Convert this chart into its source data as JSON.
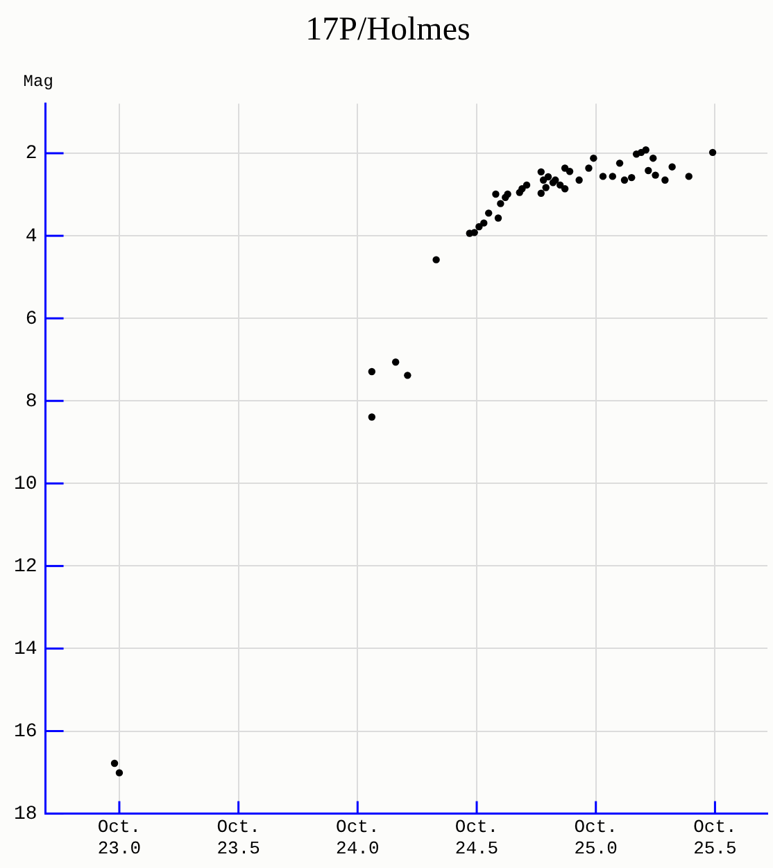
{
  "chart_data": {
    "type": "scatter",
    "title": "17P/Holmes",
    "ylabel": "Mag",
    "x": [
      "--10-22T23:31",
      "--10-23T00:00",
      "--10-24T01:26",
      "--10-24T01:26",
      "--10-24T03:50",
      "--10-24T05:02",
      "--10-24T07:55",
      "--10-24T11:17",
      "--10-24T11:46",
      "--10-24T12:14",
      "--10-24T12:43",
      "--10-24T13:12",
      "--10-24T14:10",
      "--10-24T13:55",
      "--10-24T14:24",
      "--10-24T14:53",
      "--10-24T15:07",
      "--10-24T16:19",
      "--10-24T16:34",
      "--10-24T17:02",
      "--10-24T18:29",
      "--10-24T18:29",
      "--10-24T18:43",
      "--10-24T18:58",
      "--10-24T19:12",
      "--10-24T19:41",
      "--10-24T19:55",
      "--10-24T20:24",
      "--10-24T20:53",
      "--10-24T20:53",
      "--10-24T21:22",
      "--10-24T22:19",
      "--10-24T23:17",
      "--10-24T23:46",
      "--10-25T00:43",
      "--10-25T01:41",
      "--10-25T02:24",
      "--10-25T02:53",
      "--10-25T03:36",
      "--10-25T04:05",
      "--10-25T04:34",
      "--10-25T05:02",
      "--10-25T05:17",
      "--10-25T05:46",
      "--10-25T06:00",
      "--10-25T06:58",
      "--10-25T07:41",
      "--10-25T09:22",
      "--10-25T11:46"
    ],
    "values": [
      16.78,
      17.01,
      7.29,
      8.39,
      7.06,
      7.38,
      4.58,
      3.94,
      3.92,
      3.78,
      3.69,
      3.45,
      3.57,
      2.99,
      3.22,
      3.07,
      2.99,
      2.95,
      2.86,
      2.77,
      2.45,
      2.97,
      2.65,
      2.83,
      2.57,
      2.71,
      2.65,
      2.77,
      2.86,
      2.36,
      2.44,
      2.65,
      2.36,
      2.12,
      2.56,
      2.56,
      2.24,
      2.65,
      2.59,
      2.02,
      1.98,
      1.92,
      2.42,
      2.12,
      2.53,
      2.65,
      2.33,
      2.56,
      1.98
    ],
    "color": "#000000",
    "marker": "circle",
    "xlim": [
      "--10-22T16:34",
      "--10-25T17:17"
    ],
    "xticks": [
      {
        "value": "--10-23",
        "label": "Oct.\n23.0"
      },
      {
        "value": "--10-23T12:00",
        "label": "Oct.\n23.5"
      },
      {
        "value": "--10-24",
        "label": "Oct.\n24.0"
      },
      {
        "value": "--10-24T12:00",
        "label": "Oct.\n24.5"
      },
      {
        "value": "--10-25",
        "label": "Oct.\n25.0"
      },
      {
        "value": "--10-25T12:00",
        "label": "Oct.\n25.5"
      }
    ],
    "ylim": [
      18,
      0.8
    ],
    "yticks": [
      2,
      4,
      6,
      8,
      10,
      12,
      14,
      16,
      18
    ],
    "grid": true,
    "legend": false
  }
}
